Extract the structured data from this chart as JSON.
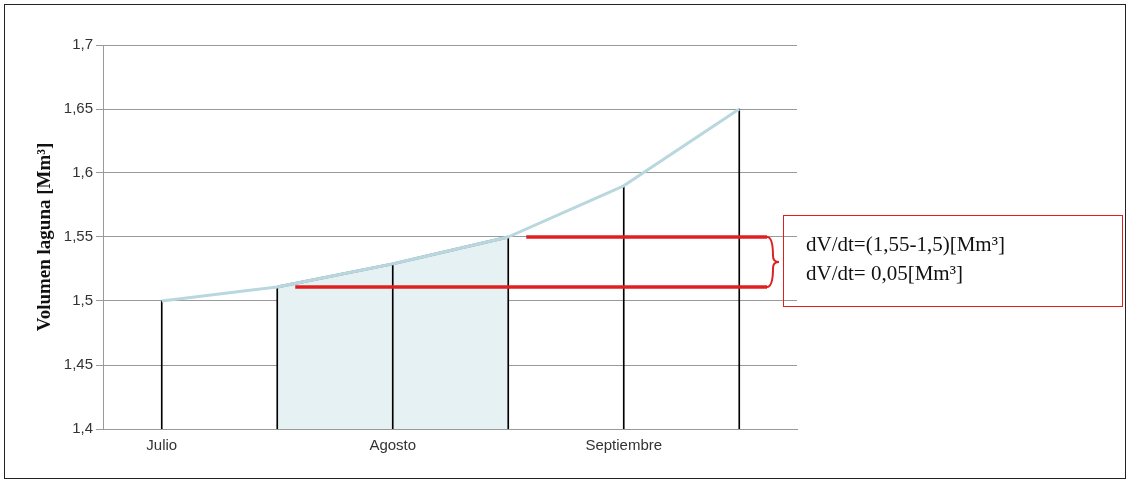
{
  "chart_data": {
    "type": "line",
    "ylabel": "Volumen laguna [Mm³]",
    "categories": [
      "Julio",
      null,
      "Agosto",
      null,
      "Septiembre",
      null
    ],
    "series": [
      {
        "type": "area",
        "color": "#e6f1f4",
        "values": [
          null,
          1.511,
          1.529,
          1.55,
          null,
          null
        ]
      },
      {
        "type": "bar",
        "color": "#000000",
        "values": [
          1.5,
          1.511,
          1.529,
          1.55,
          1.59,
          1.65
        ]
      },
      {
        "color": "#b9d7df",
        "values": [
          1.5,
          1.511,
          1.529,
          1.55,
          1.59,
          1.65
        ]
      }
    ],
    "ylim": [
      1.4,
      1.7
    ],
    "yticks": [
      {
        "value": 1.4,
        "label": "1,4"
      },
      {
        "value": 1.45,
        "label": "1,45"
      },
      {
        "value": 1.5,
        "label": "1,5"
      },
      {
        "value": 1.55,
        "label": "1,55"
      },
      {
        "value": 1.6,
        "label": "1,6"
      },
      {
        "value": 1.65,
        "label": "1,65"
      },
      {
        "value": 1.7,
        "label": "1,7"
      }
    ],
    "grid": "y",
    "legend": false,
    "marker": "none",
    "ref_lines": [
      {
        "axis": "y",
        "value": 1.55,
        "color": "#e02020"
      },
      {
        "axis": "y",
        "value": 1.511,
        "color": "#e02020"
      }
    ],
    "annotations": [
      "dV/dt=(1,55-1,5)[Mm³]",
      "dV/dt= 0,05[Mm³]"
    ]
  }
}
